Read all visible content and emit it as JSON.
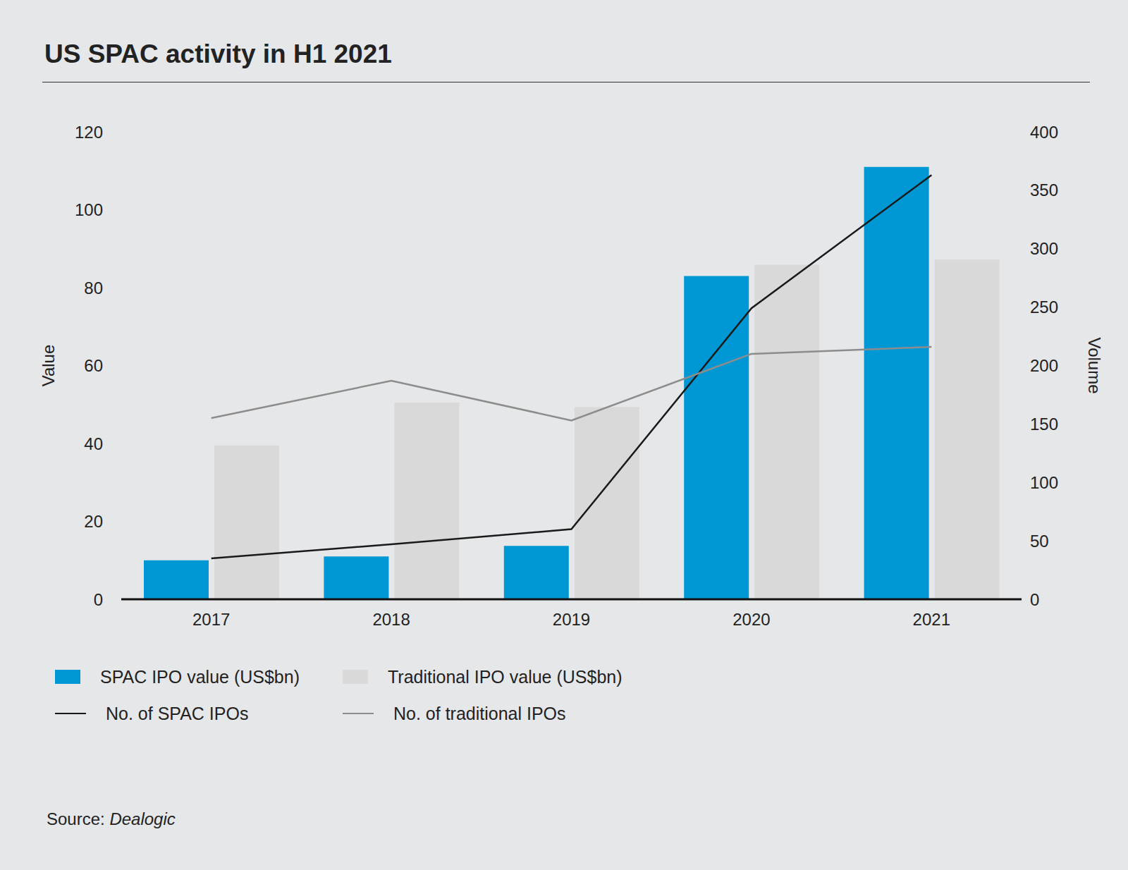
{
  "chart_data": {
    "type": "bar",
    "title": "US SPAC activity in H1 2021",
    "categories": [
      "2017",
      "2018",
      "2019",
      "2020",
      "2021"
    ],
    "series": [
      {
        "name": "SPAC IPO value (US$bn)",
        "type": "bar",
        "color": "#0098d4",
        "values": [
          10,
          11,
          13.7,
          83,
          111
        ]
      },
      {
        "name": "Traditional IPO value (US$bn)",
        "type": "bar",
        "color": "#d9d9d9",
        "values": [
          39.5,
          50.5,
          49.3,
          85.9,
          87.2
        ]
      },
      {
        "name": "No. of SPAC IPOs",
        "type": "line",
        "axis": "y2",
        "color": "#1a1a1a",
        "values": [
          35,
          47,
          60,
          249,
          363
        ]
      },
      {
        "name": "No. of traditional IPOs",
        "type": "line",
        "axis": "y2",
        "color": "#8c8c8c",
        "values": [
          155,
          187,
          153,
          210,
          216
        ]
      }
    ],
    "y_label": "Value",
    "y2_label": "Volume",
    "ylim": [
      0,
      120
    ],
    "yticks": [
      0,
      20,
      40,
      60,
      80,
      100,
      120
    ],
    "y2lim": [
      0,
      400
    ],
    "y2ticks": [
      0,
      50,
      100,
      150,
      200,
      250,
      300,
      350,
      400
    ],
    "grid": false,
    "source_prefix": "Source:",
    "source": "Dealogic"
  }
}
